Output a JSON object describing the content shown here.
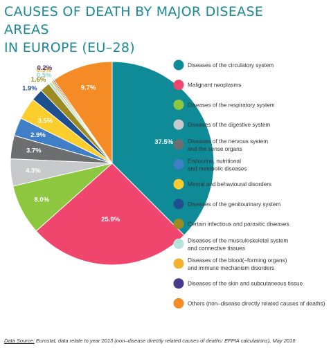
{
  "title_line1": "CAUSES OF DEATH BY MAJOR DISEASE AREAS",
  "title_line2": "IN EUROPE (EU–28)",
  "source_label": "Data Source:",
  "source_text": " Eurostat, data relate to year 2013 (non–disease directly related causes of deaths: EFPIA calculations), May 2016",
  "chart_data": {
    "type": "pie",
    "title": "CAUSES OF DEATH BY MAJOR DISEASE AREAS IN EUROPE (EU–28)",
    "unit": "%",
    "legend_placement": "right",
    "slices": [
      {
        "label": "Diseases of the circulatory system",
        "value": 37.5,
        "display": "37.5%",
        "color": "#0f8b98"
      },
      {
        "label": "Malignant neoplasms",
        "value": 25.9,
        "display": "25.9%",
        "color": "#f0456d"
      },
      {
        "label": "Diseases of the respiratory system",
        "value": 8.0,
        "display": "8.0%",
        "color": "#8dc63f"
      },
      {
        "label": "Diseases of the digestive system",
        "value": 4.3,
        "display": "4.3%",
        "color": "#c8c9cb"
      },
      {
        "label": "Diseases of the nervous system and the sense organs",
        "value": 3.7,
        "display": "3.7%",
        "color": "#6d6e70"
      },
      {
        "label": "Endocrine, nutritional and metabolic diseases",
        "value": 2.9,
        "display": "2.9%",
        "color": "#3f7fc7"
      },
      {
        "label": "Mental and behavioural disorders",
        "value": 3.5,
        "display": "3.5%",
        "color": "#fcce2d"
      },
      {
        "label": "Diseases of the genitourinary system",
        "value": 1.9,
        "display": "1.9%",
        "color": "#1e4f8f"
      },
      {
        "label": "Certain infectious and parasitic diseases",
        "value": 1.6,
        "display": "1.6%",
        "color": "#9c8b22"
      },
      {
        "label": "Diseases of the musculoskeletal system and connective tissues",
        "value": 0.5,
        "display": "0.5%",
        "color": "#b6e3da"
      },
      {
        "label": "Diseases of the blood(–forming organs) and immune mechanism disorders",
        "value": 0.3,
        "display": "0.3%",
        "color": "#f2b230"
      },
      {
        "label": "Diseases of the skin and subcutaneous tissue",
        "value": 0.2,
        "display": "0.2%",
        "color": "#4a3a8c"
      },
      {
        "label": "Others (non–disease directly related causes of deaths)",
        "value": 9.7,
        "display": "9.7%",
        "color": "#f58b25"
      }
    ],
    "legend": [
      {
        "line1": "Diseases of the circulatory system",
        "line2": "",
        "color": "#0f8b98"
      },
      {
        "line1": "Malignant neoplasms",
        "line2": "",
        "color": "#f0456d"
      },
      {
        "line1": "Diseases of the respiratory system",
        "line2": "",
        "color": "#8dc63f"
      },
      {
        "line1": "Diseases of the digestive system",
        "line2": "",
        "color": "#c8c9cb"
      },
      {
        "line1": "Diseases of the nervous system",
        "line2": "and the sense organs",
        "color": "#6d6e70"
      },
      {
        "line1": "Endocrine, nutritional",
        "line2": "and metabolic diseases",
        "color": "#3f7fc7"
      },
      {
        "line1": "Mental and behavioural disorders",
        "line2": "",
        "color": "#fcce2d"
      },
      {
        "line1": "Diseases of the genitourinary system",
        "line2": "",
        "color": "#1e4f8f"
      },
      {
        "line1": "Certain infectious and parasitic diseases",
        "line2": "",
        "color": "#9c8b22"
      },
      {
        "line1": "Diseases of the musculoskeletal system",
        "line2": "and connective tissues",
        "color": "#b6e3da"
      },
      {
        "line1": "Diseases of the blood(–forming organs)",
        "line2": "and immune mechanism disorders",
        "color": "#f2b230"
      },
      {
        "line1": "Diseases of the skin and subcutaneous tissue",
        "line2": "",
        "color": "#4a3a8c"
      },
      {
        "line1": "Others (non–disease directly related causes of deaths)",
        "line2": "",
        "color": "#f58b25"
      }
    ]
  }
}
